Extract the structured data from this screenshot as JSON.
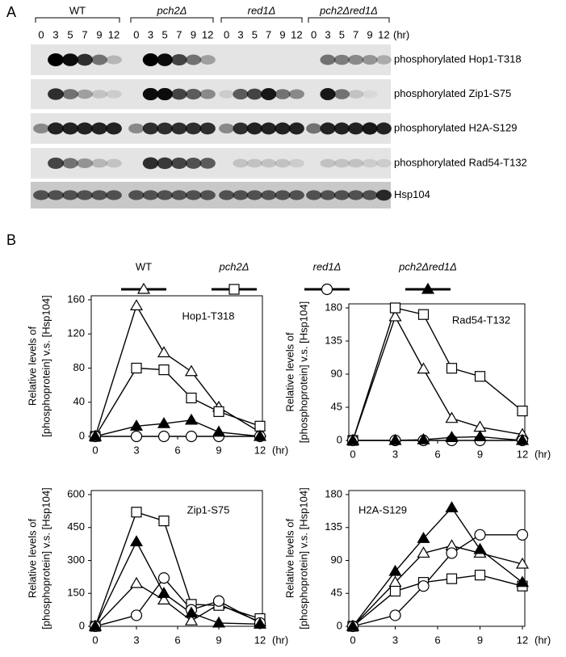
{
  "blot": {
    "panel": "A",
    "groups": [
      "WT",
      "pch2Δ",
      "red1Δ",
      "pch2Δred1Δ"
    ],
    "times": [
      "0",
      "3",
      "5",
      "7",
      "9",
      "12"
    ],
    "time_unit": "(hr)",
    "rows": [
      "phosphorylated Hop1-T318",
      "phosphorylated Zip1-S75",
      "phosphorylated H2A-S129",
      "phosphorylated Rad54-T132",
      "Hsp104"
    ]
  },
  "panel_b": "B",
  "legend": [
    {
      "name": "WT",
      "marker": "triangle",
      "filled": false
    },
    {
      "name": "pch2Δ",
      "marker": "square",
      "filled": false
    },
    {
      "name": "red1Δ",
      "marker": "circle",
      "filled": false
    },
    {
      "name": "pch2Δred1Δ",
      "marker": "triangle",
      "filled": true
    }
  ],
  "chart_data": [
    {
      "type": "line",
      "title": "Hop1-T318",
      "ylabel": [
        "Relative levels of",
        "[phosphoprotein] v.s. [Hsp104]"
      ],
      "xlabel": "(hr)",
      "x": [
        0,
        3,
        5,
        7,
        9,
        12
      ],
      "xlim": [
        0,
        12
      ],
      "xticks": [
        0,
        3,
        6,
        9,
        12
      ],
      "ylim": [
        0,
        160
      ],
      "yticks": [
        0,
        40,
        80,
        120,
        160
      ],
      "series": [
        {
          "values": [
            0,
            153,
            98,
            76,
            34,
            5
          ]
        },
        {
          "values": [
            0,
            80,
            78,
            45,
            29,
            12
          ]
        },
        {
          "values": [
            0,
            0,
            0,
            0,
            0,
            0
          ]
        },
        {
          "values": [
            0,
            12,
            15,
            19,
            5,
            0
          ]
        }
      ]
    },
    {
      "type": "line",
      "title": "Rad54-T132",
      "ylabel": [
        "Relative levels of",
        "[phosphoprotein] v.s. [Hsp104]"
      ],
      "xlabel": "(hr)",
      "x": [
        0,
        3,
        5,
        7,
        9,
        12
      ],
      "xlim": [
        0,
        12
      ],
      "xticks": [
        0,
        3,
        6,
        9,
        12
      ],
      "ylim": [
        0,
        180
      ],
      "yticks": [
        0,
        45,
        90,
        135,
        180
      ],
      "series": [
        {
          "values": [
            0,
            168,
            97,
            30,
            18,
            8
          ]
        },
        {
          "values": [
            0,
            180,
            171,
            98,
            87,
            40
          ]
        },
        {
          "values": [
            0,
            0,
            0,
            0,
            0,
            0
          ]
        },
        {
          "values": [
            0,
            0,
            1,
            4,
            5,
            0
          ]
        }
      ]
    },
    {
      "type": "line",
      "title": "Zip1-S75",
      "ylabel": [
        "Relative levels of",
        "[phosphoprotein] v.s. [Hsp104]"
      ],
      "xlabel": "(hr)",
      "x": [
        0,
        3,
        5,
        7,
        9,
        12
      ],
      "xlim": [
        0,
        12
      ],
      "xticks": [
        0,
        3,
        6,
        9,
        12
      ],
      "ylim": [
        0,
        600
      ],
      "yticks": [
        0,
        150,
        300,
        450,
        600
      ],
      "series": [
        {
          "values": [
            0,
            195,
            120,
            25,
            100,
            20
          ]
        },
        {
          "values": [
            0,
            520,
            480,
            100,
            95,
            35
          ]
        },
        {
          "values": [
            0,
            50,
            220,
            75,
            115,
            15
          ]
        },
        {
          "values": [
            0,
            385,
            150,
            60,
            15,
            10
          ]
        }
      ]
    },
    {
      "type": "line",
      "title": "H2A-S129",
      "ylabel": [
        "Relative levels of",
        "[phosphoprotein] v.s. [Hsp104]"
      ],
      "xlabel": "(hr)",
      "x": [
        0,
        3,
        5,
        7,
        9,
        12
      ],
      "xlim": [
        0,
        12
      ],
      "xticks": [
        0,
        3,
        6,
        9,
        12
      ],
      "ylim": [
        0,
        180
      ],
      "yticks": [
        0,
        45,
        90,
        135,
        180
      ],
      "series": [
        {
          "values": [
            0,
            60,
            100,
            110,
            100,
            85
          ]
        },
        {
          "values": [
            0,
            48,
            60,
            65,
            70,
            55
          ]
        },
        {
          "values": [
            0,
            15,
            55,
            100,
            125,
            125
          ]
        },
        {
          "values": [
            0,
            75,
            120,
            162,
            105,
            60
          ]
        }
      ]
    }
  ]
}
